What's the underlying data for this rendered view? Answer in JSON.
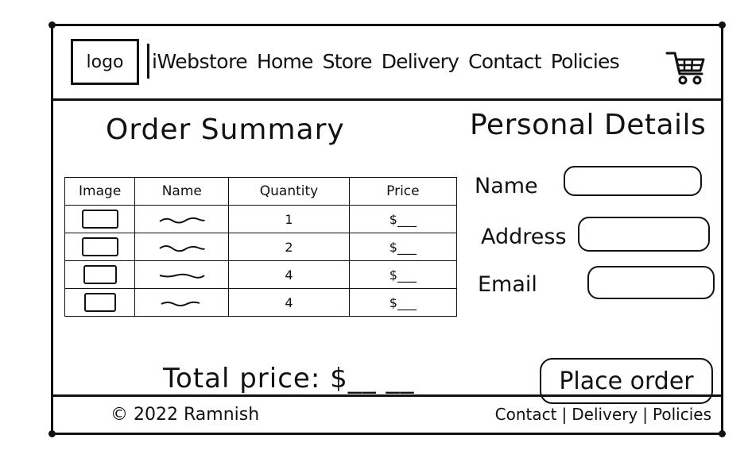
{
  "header": {
    "logo_label": "logo",
    "brand": "iWebstore",
    "nav": [
      "Home",
      "Store",
      "Delivery",
      "Contact",
      "Policies"
    ],
    "cart_icon": "shopping-cart-icon"
  },
  "order": {
    "title": "Order Summary",
    "columns": [
      "Image",
      "Name",
      "Quantity",
      "Price"
    ],
    "rows": [
      {
        "quantity": "1",
        "price": "$___"
      },
      {
        "quantity": "2",
        "price": "$___"
      },
      {
        "quantity": "4",
        "price": "$___"
      },
      {
        "quantity": "4",
        "price": "$___"
      }
    ],
    "total": "Total price: $__ __"
  },
  "personal": {
    "title": "Personal Details",
    "name_label": "Name",
    "address_label": "Address",
    "email_label": "Email"
  },
  "actions": {
    "place_order": "Place order"
  },
  "footer": {
    "copyright": "© 2022 Ramnish",
    "links": [
      "Contact",
      "Delivery",
      "Policies"
    ],
    "separator": "|"
  }
}
